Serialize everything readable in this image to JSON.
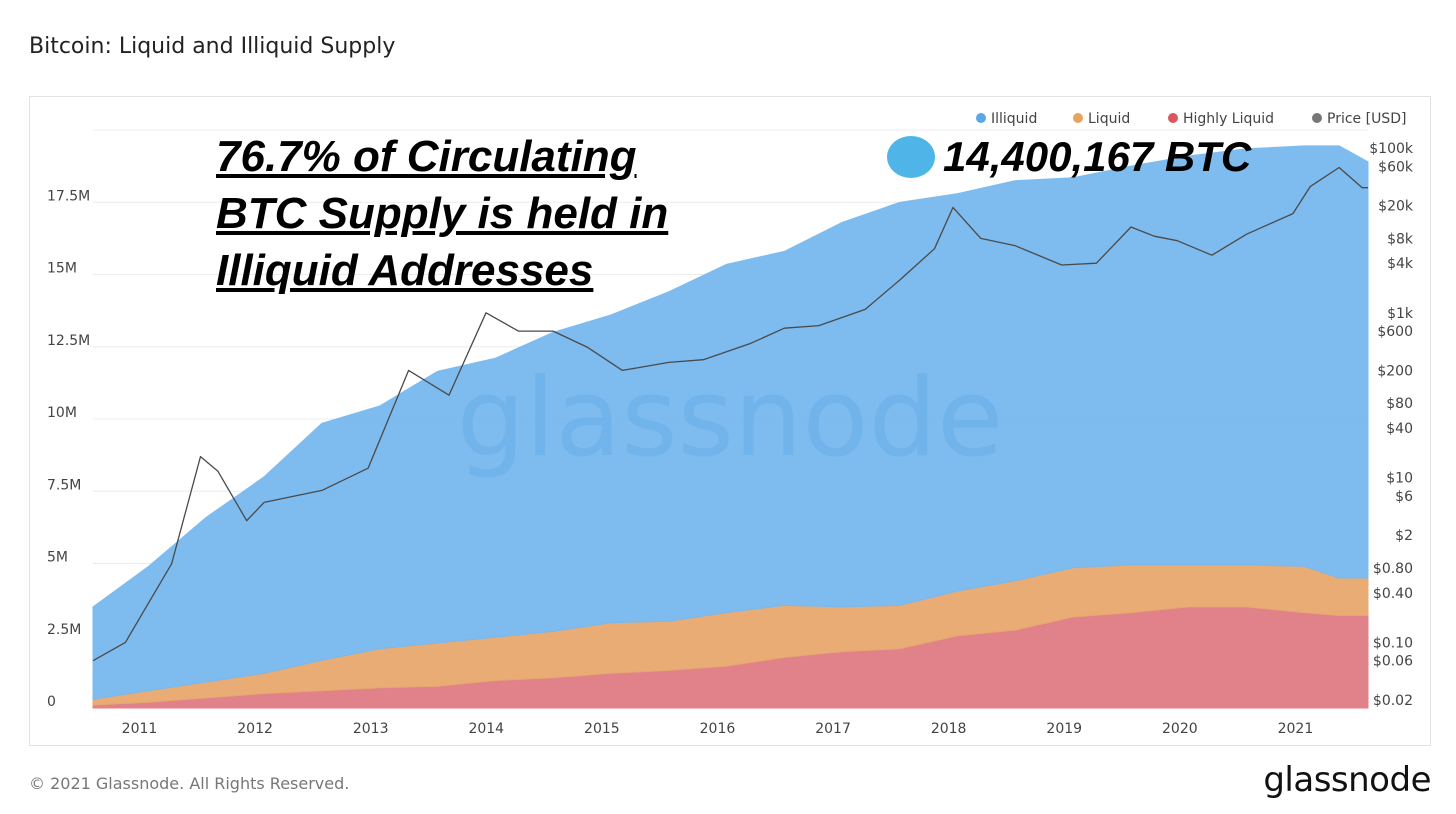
{
  "page": {
    "title": "Bitcoin: Liquid and Illiquid Supply",
    "footer": "© 2021 Glassnode. All Rights Reserved.",
    "logo": "glassnode",
    "watermark": "glassnode"
  },
  "annotation": {
    "lines": [
      "76.7% of Circulating",
      "BTC Supply is held in",
      "Illiquid Addresses"
    ],
    "badge_text": "14,400,167 BTC",
    "badge_color": "#4fb5e8"
  },
  "chart_data": {
    "type": "area",
    "stacked": true,
    "x_ticks": [
      "2011",
      "2012",
      "2013",
      "2014",
      "2015",
      "2016",
      "2017",
      "2018",
      "2019",
      "2020",
      "2021"
    ],
    "x_range": [
      2010.52,
      2021.55
    ],
    "y_ticks": [
      "0",
      "2.5M",
      "5M",
      "7.5M",
      "10M",
      "12.5M",
      "15M",
      "17.5M"
    ],
    "y_tick_values": [
      0,
      2.5,
      5,
      7.5,
      10,
      12.5,
      15,
      17.5
    ],
    "ylim": [
      0,
      20
    ],
    "y2_ticks": [
      "$100k",
      "$60k",
      "$20k",
      "$8k",
      "$4k",
      "$1k",
      "$600",
      "$200",
      "$80",
      "$40",
      "$10",
      "$6",
      "$2",
      "$0.80",
      "$0.40",
      "$0.10",
      "$0.06",
      "$0.02"
    ],
    "y2_tick_values": [
      100000,
      60000,
      20000,
      8000,
      4000,
      1000,
      600,
      200,
      80,
      40,
      10,
      6,
      2,
      0.8,
      0.4,
      0.1,
      0.06,
      0.02
    ],
    "y2_scale": "log",
    "y2_lim": [
      0.02,
      100000
    ],
    "legend_position": "top-right",
    "x": [
      2010.52,
      2011.0,
      2011.5,
      2012.0,
      2012.5,
      2013.0,
      2013.5,
      2014.0,
      2014.5,
      2015.0,
      2015.5,
      2016.0,
      2016.5,
      2017.0,
      2017.5,
      2018.0,
      2018.5,
      2019.0,
      2019.5,
      2020.0,
      2020.5,
      2021.0,
      2021.3,
      2021.55
    ],
    "series": [
      {
        "name": "Highly Liquid",
        "color": "#e07b83",
        "values": [
          0.1,
          0.2,
          0.35,
          0.5,
          0.6,
          0.7,
          0.75,
          0.95,
          1.05,
          1.2,
          1.3,
          1.45,
          1.75,
          1.95,
          2.05,
          2.5,
          2.7,
          3.15,
          3.3,
          3.5,
          3.5,
          3.3,
          3.2,
          3.2
        ]
      },
      {
        "name": "Liquid",
        "color": "#e8a86e",
        "values": [
          0.2,
          0.4,
          0.55,
          0.7,
          1.05,
          1.35,
          1.5,
          1.5,
          1.6,
          1.75,
          1.7,
          1.85,
          1.8,
          1.55,
          1.5,
          1.55,
          1.7,
          1.7,
          1.65,
          1.45,
          1.45,
          1.6,
          1.3,
          1.3
        ]
      },
      {
        "name": "Illiquid",
        "color": "#78b8ee",
        "values": [
          3.2,
          4.3,
          5.7,
          6.8,
          8.2,
          8.4,
          9.4,
          9.65,
          10.35,
          10.65,
          11.4,
          12.05,
          12.25,
          13.3,
          13.95,
          13.75,
          13.85,
          13.5,
          13.8,
          14.15,
          14.4,
          14.55,
          14.95,
          14.4
        ]
      },
      {
        "name": "Price [USD]",
        "color": "#555555",
        "axis": "right",
        "x": [
          2010.52,
          2010.8,
          2011.0,
          2011.2,
          2011.45,
          2011.6,
          2011.85,
          2012.0,
          2012.5,
          2012.9,
          2013.25,
          2013.6,
          2013.92,
          2014.2,
          2014.5,
          2014.8,
          2015.1,
          2015.5,
          2015.8,
          2016.2,
          2016.5,
          2016.8,
          2017.2,
          2017.5,
          2017.8,
          2017.96,
          2018.2,
          2018.5,
          2018.9,
          2019.2,
          2019.5,
          2019.7,
          2019.9,
          2020.2,
          2020.5,
          2020.9,
          2021.05,
          2021.3,
          2021.5,
          2021.55
        ],
        "values": [
          0.06,
          0.1,
          0.3,
          0.9,
          18,
          12,
          3,
          5,
          7,
          13,
          200,
          100,
          1000,
          600,
          600,
          380,
          200,
          250,
          270,
          420,
          650,
          700,
          1100,
          2500,
          6000,
          19000,
          8000,
          6500,
          3800,
          4000,
          11000,
          8500,
          7500,
          5000,
          9000,
          16000,
          34000,
          58000,
          33000,
          33000
        ]
      }
    ]
  }
}
